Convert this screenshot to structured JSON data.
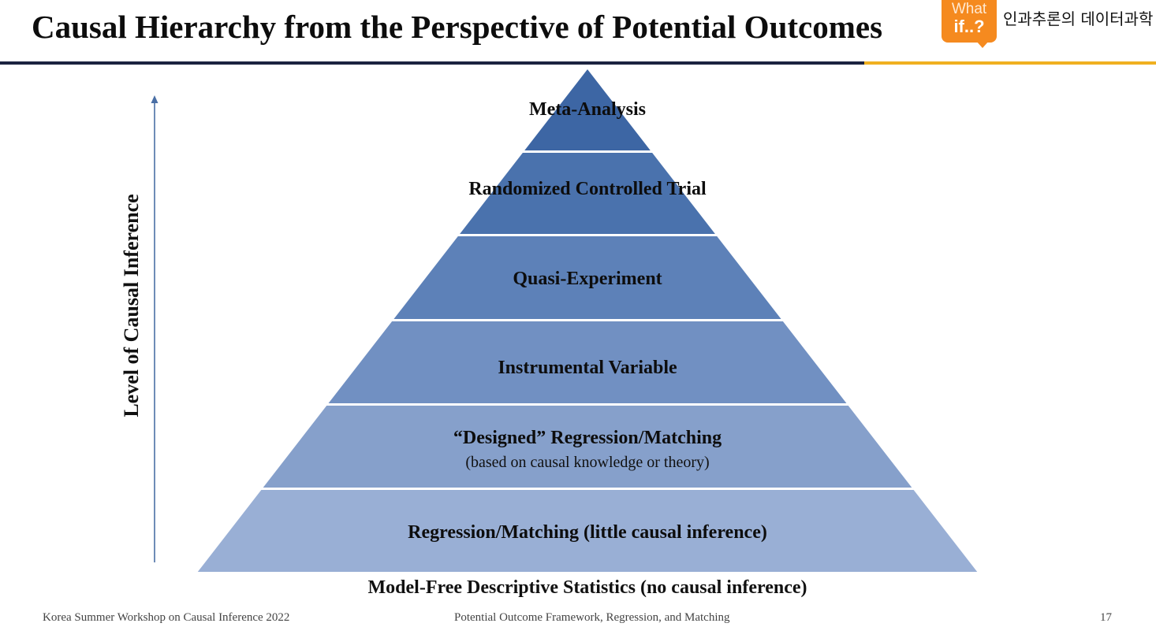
{
  "header": {
    "title": "Causal Hierarchy from the Perspective of Potential Outcomes",
    "logo_top": "What",
    "logo_bottom": "if..?",
    "korean_text": "인과추론의 데이터과학"
  },
  "axis": {
    "label": "Level of Causal Inference"
  },
  "pyramid": {
    "levels": [
      {
        "label": "Meta-Analysis",
        "sublabel": "",
        "color": "#3d66a4"
      },
      {
        "label": "Randomized Controlled Trial",
        "sublabel": "",
        "color": "#4a72ad"
      },
      {
        "label": "Quasi-Experiment",
        "sublabel": "",
        "color": "#5d81b8"
      },
      {
        "label": "Instrumental Variable",
        "sublabel": "",
        "color": "#7190c2"
      },
      {
        "label": "“Designed” Regression/Matching",
        "sublabel": "(based on causal knowledge or theory)",
        "color": "#86a0cb"
      },
      {
        "label": "Regression/Matching (little causal inference)",
        "sublabel": "",
        "color": "#99afd5"
      }
    ],
    "base_label": "Model-Free Descriptive Statistics (no causal inference)"
  },
  "footer": {
    "left": "Korea Summer Workshop on Causal Inference 2022",
    "center": "Potential Outcome Framework, Regression, and Matching",
    "page_number": "17"
  }
}
